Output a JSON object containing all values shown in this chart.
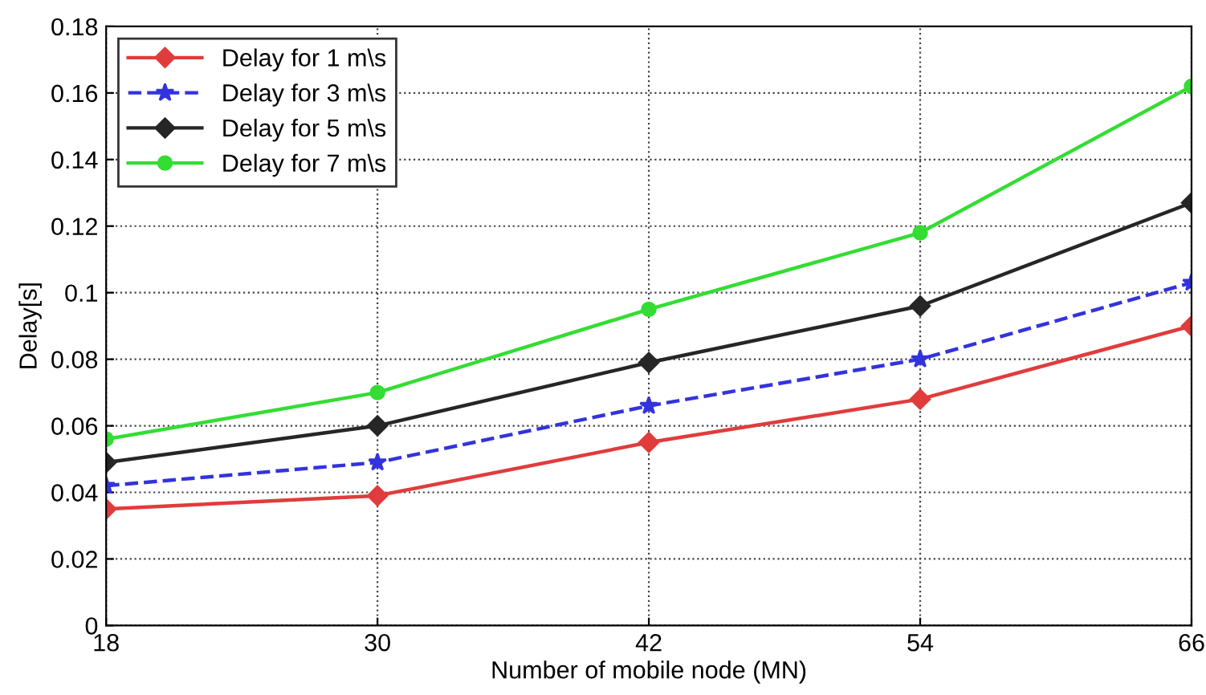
{
  "chart_data": {
    "type": "line",
    "xlabel": "Number of mobile node (MN)",
    "ylabel": "Delay[s]",
    "x": [
      18,
      30,
      42,
      54,
      66
    ],
    "xlim": [
      18,
      66
    ],
    "xticks": [
      18,
      30,
      42,
      54,
      66
    ],
    "ylim": [
      0,
      0.18
    ],
    "yticks": [
      0,
      0.02,
      0.04,
      0.06,
      0.08,
      {
        "value": 0.1,
        "label": "0.1"
      },
      0.12,
      0.14,
      0.16,
      0.18
    ],
    "grid": true,
    "legend": "top left",
    "series": [
      {
        "name": "Delay for 1 m\\s",
        "color": "#e03c3c",
        "marker": "diamond",
        "line_style": "solid",
        "values": [
          0.035,
          0.039,
          0.055,
          0.068,
          0.09
        ]
      },
      {
        "name": "Delay for 3 m\\s",
        "color": "#3333dd",
        "marker": "star",
        "line_style": "dashed",
        "values": [
          0.042,
          0.049,
          0.066,
          0.08,
          0.103
        ]
      },
      {
        "name": "Delay for 5 m\\s",
        "color": "#262626",
        "marker": "diamond",
        "line_style": "solid",
        "values": [
          0.049,
          0.06,
          0.079,
          0.096,
          0.127
        ]
      },
      {
        "name": "Delay for 7 m\\s",
        "color": "#33dd33",
        "marker": "circle",
        "line_style": "solid",
        "values": [
          0.056,
          0.07,
          0.095,
          0.118,
          0.162
        ]
      }
    ]
  }
}
